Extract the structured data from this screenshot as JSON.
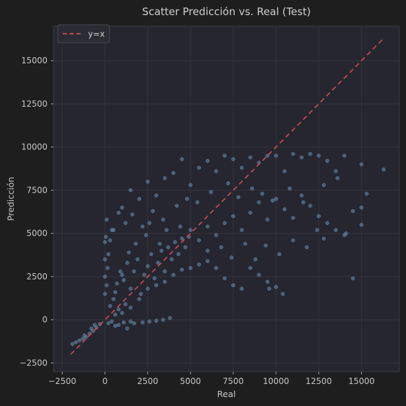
{
  "chart_data": {
    "type": "scatter",
    "title": "Scatter Predicción vs. Real (Test)",
    "xlabel": "Real",
    "ylabel": "Predicción",
    "xlim": [
      -3000,
      17200
    ],
    "ylim": [
      -3000,
      17000
    ],
    "xticks": [
      -2500,
      0,
      2500,
      5000,
      7500,
      10000,
      12500,
      15000
    ],
    "yticks": [
      -2500,
      0,
      2500,
      5000,
      7500,
      10000,
      12500,
      15000
    ],
    "grid": true,
    "legend": {
      "placement": "top-left",
      "entries": [
        "y=x"
      ]
    },
    "reference_line": {
      "name": "y=x",
      "x": [
        -2000,
        16300
      ],
      "y": [
        -2000,
        16300
      ],
      "style": "dashed"
    },
    "series": [
      {
        "name": "points",
        "points": [
          [
            -1900,
            -1400
          ],
          [
            -1700,
            -1300
          ],
          [
            -1500,
            -1200
          ],
          [
            -1300,
            -1100
          ],
          [
            -1100,
            -1000
          ],
          [
            -900,
            -800
          ],
          [
            -700,
            -650
          ],
          [
            -500,
            -450
          ],
          [
            -300,
            -250
          ],
          [
            -1200,
            -900
          ],
          [
            -800,
            -500
          ],
          [
            -600,
            -300
          ],
          [
            0,
            1500
          ],
          [
            0,
            2500
          ],
          [
            0,
            3500
          ],
          [
            0,
            4500
          ],
          [
            50,
            4800
          ],
          [
            100,
            2000
          ],
          [
            150,
            3000
          ],
          [
            200,
            3800
          ],
          [
            300,
            4600
          ],
          [
            400,
            5200
          ],
          [
            100,
            5800
          ],
          [
            500,
            1200
          ],
          [
            700,
            2100
          ],
          [
            900,
            2800
          ],
          [
            1100,
            2300
          ],
          [
            1300,
            3300
          ],
          [
            1500,
            1800
          ],
          [
            1700,
            2800
          ],
          [
            1900,
            3500
          ],
          [
            2100,
            1500
          ],
          [
            2300,
            2600
          ],
          [
            2500,
            3100
          ],
          [
            2700,
            3800
          ],
          [
            2900,
            2400
          ],
          [
            3100,
            3300
          ],
          [
            3300,
            4000
          ],
          [
            3500,
            2800
          ],
          [
            3700,
            4200
          ],
          [
            3900,
            3500
          ],
          [
            4100,
            4500
          ],
          [
            4300,
            3800
          ],
          [
            4500,
            4700
          ],
          [
            4700,
            4200
          ],
          [
            4900,
            4800
          ],
          [
            600,
            300
          ],
          [
            800,
            600
          ],
          [
            1000,
            400
          ],
          [
            1200,
            900
          ],
          [
            1500,
            700
          ],
          [
            2000,
            1200
          ],
          [
            2500,
            1800
          ],
          [
            3000,
            2000
          ],
          [
            3500,
            2200
          ],
          [
            4000,
            2600
          ],
          [
            4500,
            2900
          ],
          [
            5000,
            3000
          ],
          [
            5500,
            3200
          ],
          [
            6000,
            3400
          ],
          [
            6500,
            3000
          ],
          [
            7000,
            2400
          ],
          [
            7500,
            2000
          ],
          [
            8000,
            1800
          ],
          [
            8500,
            3000
          ],
          [
            9000,
            2600
          ],
          [
            9500,
            2200
          ],
          [
            10000,
            1900
          ],
          [
            10400,
            1500
          ],
          [
            5000,
            5200
          ],
          [
            5500,
            4600
          ],
          [
            6000,
            5400
          ],
          [
            6500,
            4900
          ],
          [
            7000,
            5600
          ],
          [
            7500,
            6000
          ],
          [
            8000,
            5200
          ],
          [
            8500,
            6200
          ],
          [
            9000,
            6800
          ],
          [
            9500,
            5800
          ],
          [
            10000,
            7000
          ],
          [
            10500,
            6400
          ],
          [
            11000,
            5900
          ],
          [
            11500,
            7200
          ],
          [
            12000,
            6600
          ],
          [
            12500,
            6000
          ],
          [
            13000,
            5600
          ],
          [
            13500,
            5200
          ],
          [
            14000,
            4900
          ],
          [
            14500,
            6300
          ],
          [
            15000,
            6500
          ],
          [
            1000,
            6500
          ],
          [
            1500,
            7500
          ],
          [
            2000,
            7000
          ],
          [
            2500,
            8000
          ],
          [
            3000,
            7200
          ],
          [
            3500,
            8200
          ],
          [
            4000,
            8500
          ],
          [
            4500,
            9300
          ],
          [
            5000,
            7800
          ],
          [
            5500,
            8800
          ],
          [
            6000,
            9200
          ],
          [
            6500,
            8600
          ],
          [
            7000,
            9500
          ],
          [
            7500,
            9300
          ],
          [
            8000,
            8800
          ],
          [
            8500,
            9400
          ],
          [
            9000,
            9100
          ],
          [
            9500,
            9500
          ],
          [
            10000,
            9500
          ],
          [
            10500,
            8600
          ],
          [
            11000,
            9600
          ],
          [
            11500,
            9400
          ],
          [
            12000,
            9600
          ],
          [
            12500,
            9500
          ],
          [
            13000,
            9200
          ],
          [
            13500,
            8600
          ],
          [
            14000,
            9500
          ],
          [
            15000,
            9000
          ],
          [
            16300,
            8700
          ],
          [
            500,
            5200
          ],
          [
            800,
            6200
          ],
          [
            1200,
            5600
          ],
          [
            1600,
            6100
          ],
          [
            2200,
            5400
          ],
          [
            2800,
            6300
          ],
          [
            3400,
            5800
          ],
          [
            4200,
            6600
          ],
          [
            4800,
            7000
          ],
          [
            5400,
            6800
          ],
          [
            6200,
            7400
          ],
          [
            7200,
            7900
          ],
          [
            7800,
            7100
          ],
          [
            8600,
            7600
          ],
          [
            9200,
            7300
          ],
          [
            9800,
            6900
          ],
          [
            10800,
            7600
          ],
          [
            11600,
            6800
          ],
          [
            12800,
            7800
          ],
          [
            13600,
            8200
          ],
          [
            15300,
            7300
          ],
          [
            6000,
            4000
          ],
          [
            6800,
            4200
          ],
          [
            7400,
            3600
          ],
          [
            8200,
            4400
          ],
          [
            8800,
            3500
          ],
          [
            9400,
            4300
          ],
          [
            10200,
            3800
          ],
          [
            11000,
            4600
          ],
          [
            11800,
            4200
          ],
          [
            12400,
            5200
          ],
          [
            12800,
            4700
          ],
          [
            14100,
            5000
          ],
          [
            15000,
            5500
          ],
          [
            14500,
            2400
          ],
          [
            9600,
            1800
          ],
          [
            300,
            800
          ],
          [
            600,
            1600
          ],
          [
            1000,
            2600
          ],
          [
            1400,
            3900
          ],
          [
            1800,
            4400
          ],
          [
            2400,
            4900
          ],
          [
            2600,
            5600
          ],
          [
            3200,
            4400
          ],
          [
            3600,
            5200
          ],
          [
            4400,
            5400
          ],
          [
            200,
            -200
          ],
          [
            400,
            -100
          ],
          [
            800,
            -300
          ],
          [
            1100,
            -150
          ],
          [
            1300,
            -500
          ],
          [
            600,
            -350
          ],
          [
            1500,
            -100
          ],
          [
            1700,
            -200
          ],
          [
            2200,
            -150
          ],
          [
            2600,
            -100
          ],
          [
            3000,
            -50
          ],
          [
            3400,
            0
          ],
          [
            3800,
            100
          ]
        ]
      }
    ]
  },
  "colors": {
    "background": "#1e1e1e",
    "plot_background": "#262630",
    "grid": "#34343e",
    "point": "#6a8fae",
    "reference_line": "#c14b50"
  }
}
